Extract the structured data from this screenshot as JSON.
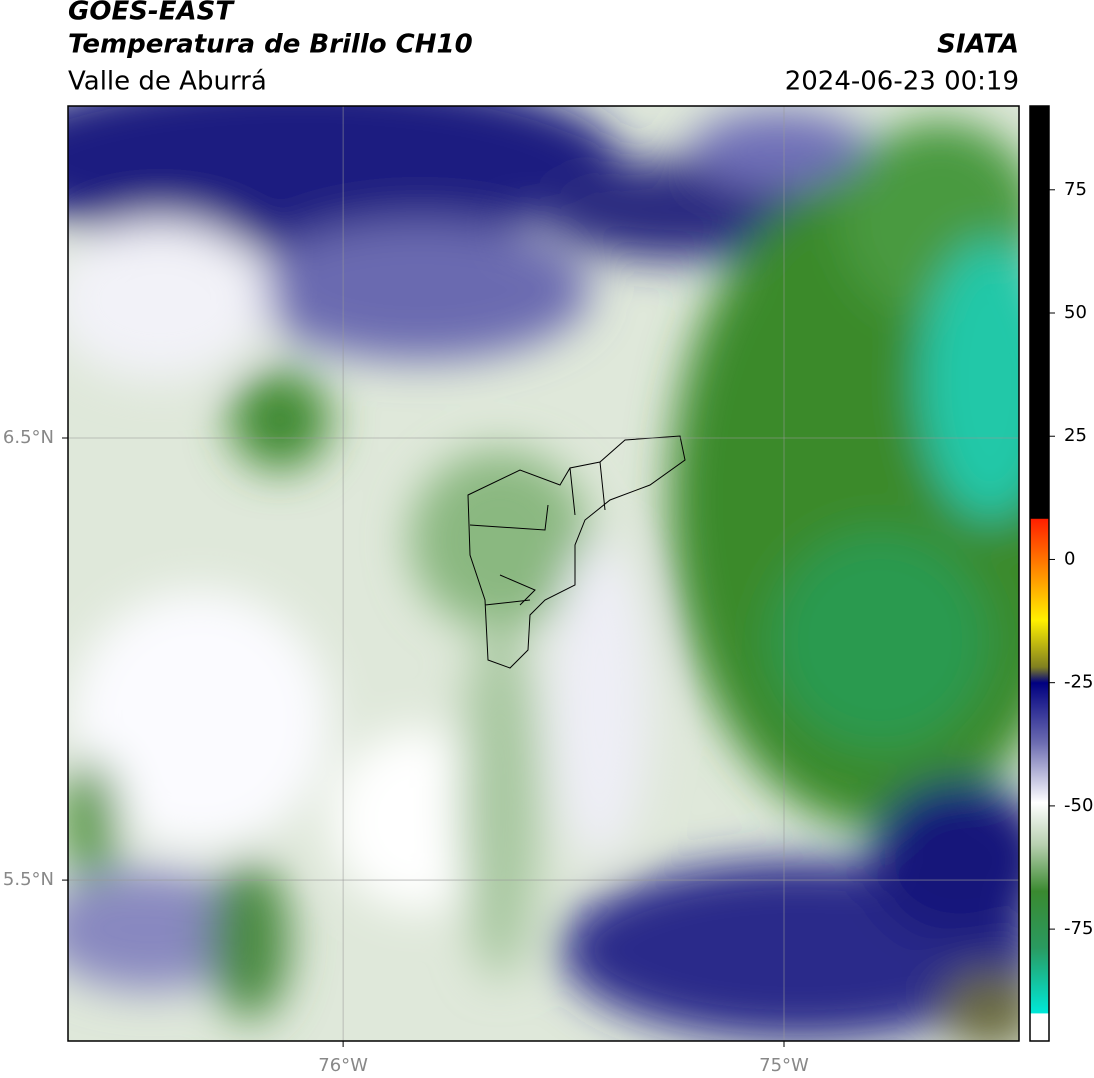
{
  "header": {
    "title": "GOES-EAST",
    "subtitle": "Temperatura de Brillo CH10",
    "region": "Valle de Aburrá",
    "source": "SIATA",
    "timestamp": "2024-06-23 00:19"
  },
  "map": {
    "lonlim": [
      -76.624,
      -74.467
    ],
    "latlim": [
      5.136,
      7.251
    ],
    "lat_labels": [
      {
        "value": 6.5,
        "label": "6.5°N"
      },
      {
        "value": 5.5,
        "label": "5.5°N"
      }
    ],
    "lon_labels": [
      {
        "value": -76,
        "label": "76°W"
      },
      {
        "value": -75,
        "label": "75°W"
      }
    ]
  },
  "colorbar": {
    "lim": [
      -97.7,
      92
    ],
    "ticks": [
      75,
      50,
      25,
      0,
      -25,
      -50,
      -75
    ]
  }
}
